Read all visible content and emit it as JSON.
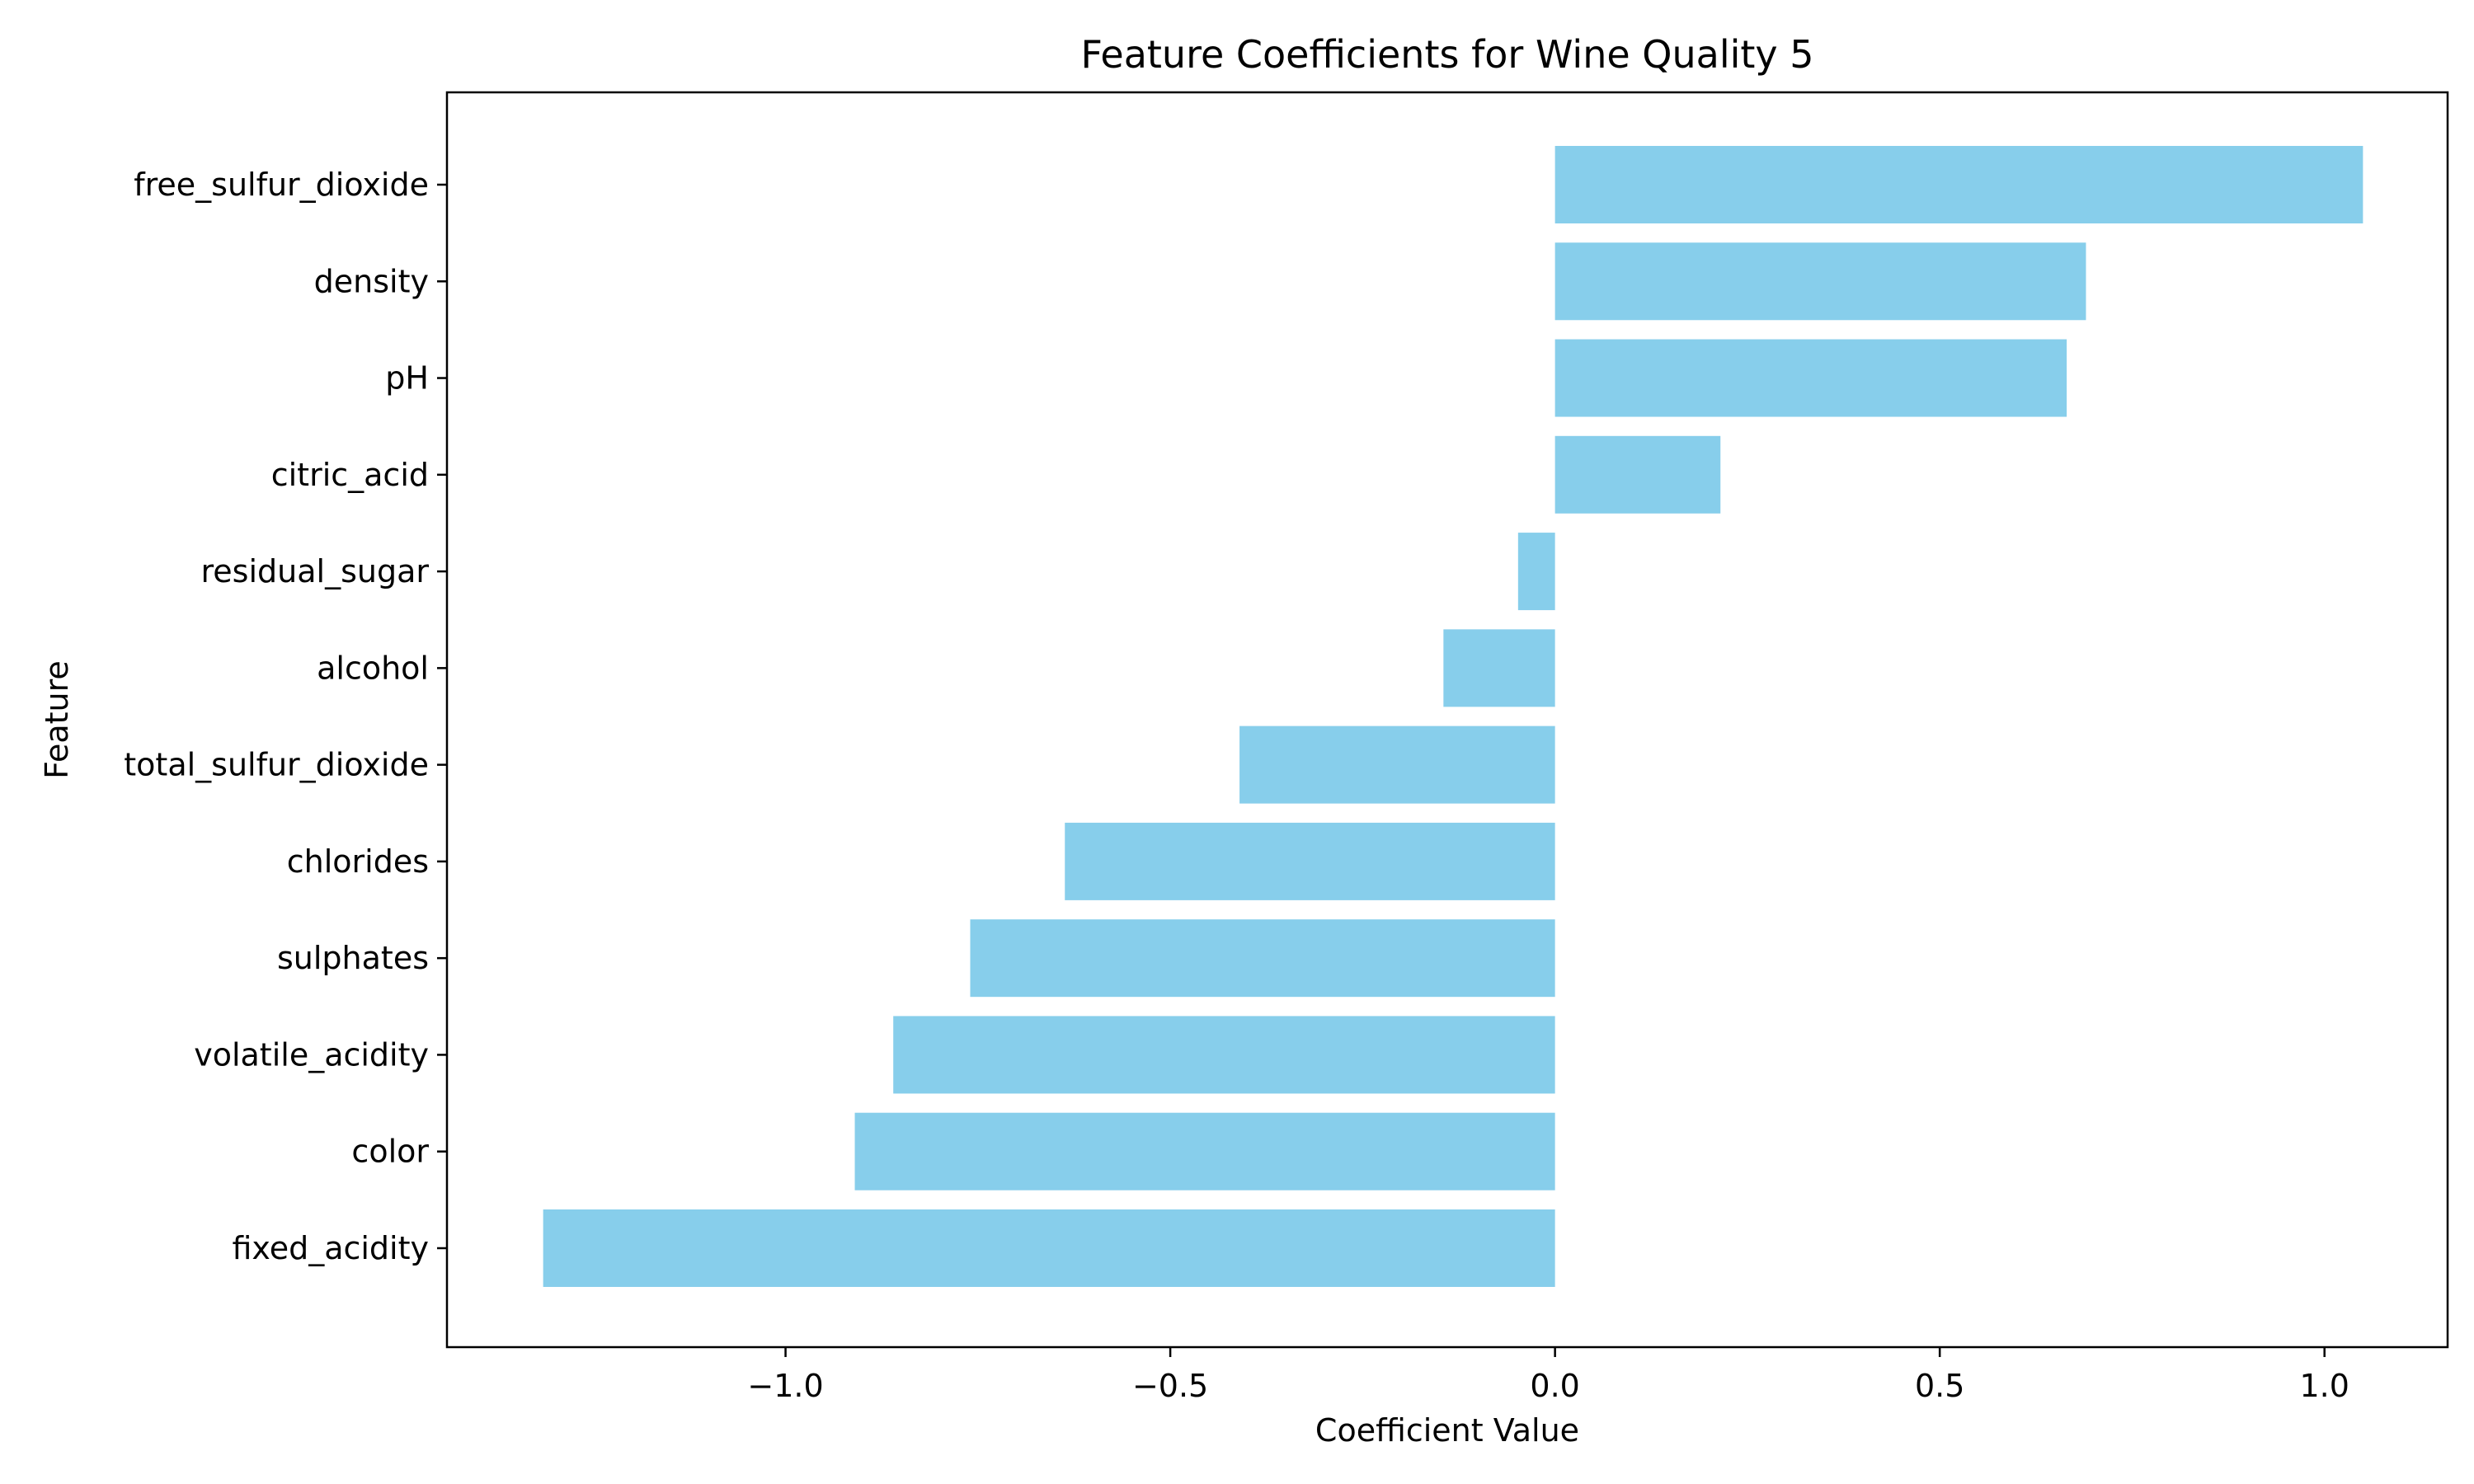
{
  "chart_data": {
    "type": "bar",
    "orientation": "horizontal",
    "title": "Feature Coefficients for Wine Quality 5",
    "xlabel": "Coefficient Value",
    "ylabel": "Feature",
    "categories": [
      "free_sulfur_dioxide",
      "density",
      "pH",
      "citric_acid",
      "residual_sugar",
      "alcohol",
      "total_sulfur_dioxide",
      "chlorides",
      "sulphates",
      "volatile_acidity",
      "color",
      "fixed_acidity"
    ],
    "values": [
      1.05,
      0.69,
      0.665,
      0.215,
      -0.048,
      -0.145,
      -0.41,
      -0.637,
      -0.76,
      -0.86,
      -0.91,
      -1.315
    ],
    "xlim": [
      -1.44,
      1.16
    ],
    "xticks": [
      -1.0,
      -0.5,
      0.0,
      0.5,
      1.0
    ],
    "xtick_labels": [
      "−1.0",
      "−0.5",
      "0.0",
      "0.5",
      "1.0"
    ],
    "bar_color": "#87ceeb",
    "grid": false,
    "legend": "none"
  }
}
